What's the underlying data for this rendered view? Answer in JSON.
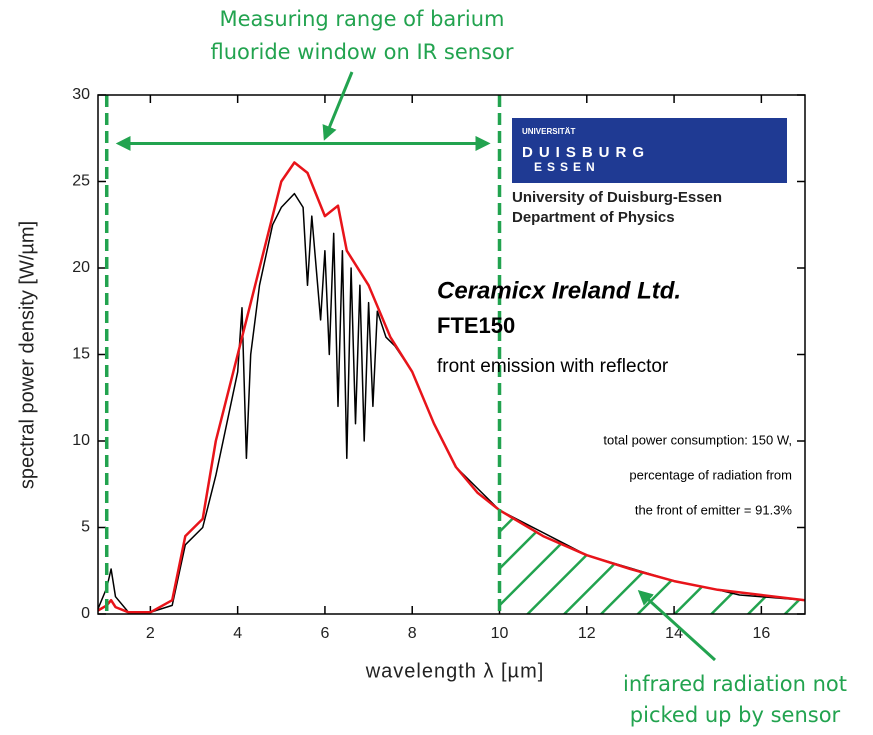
{
  "chart_data": {
    "type": "line",
    "xlabel": "wavelength λ [µm]",
    "ylabel": "spectral power density [W/µm]",
    "xlim": [
      0.8,
      17
    ],
    "ylim": [
      0,
      30
    ],
    "xticks": [
      2,
      4,
      6,
      8,
      10,
      12,
      14,
      16
    ],
    "yticks": [
      0,
      5,
      10,
      15,
      20,
      25,
      30
    ],
    "vlines": [
      1,
      10
    ],
    "range_arrow_y": 27.2,
    "hatch_from": 10,
    "series": [
      {
        "color": "#000000",
        "x": [
          0.8,
          1,
          1.1,
          1.2,
          1.5,
          2,
          2.5,
          2.8,
          3.2,
          3.5,
          4,
          4.1,
          4.2,
          4.3,
          4.5,
          4.8,
          5,
          5.3,
          5.5,
          5.6,
          5.7,
          5.9,
          6,
          6.1,
          6.2,
          6.3,
          6.4,
          6.5,
          6.6,
          6.7,
          6.8,
          6.9,
          7,
          7.1,
          7.2,
          7.4,
          7.6,
          8,
          8.5,
          9,
          10,
          12,
          14,
          15,
          15.5,
          16,
          17
        ],
        "values": [
          0.3,
          1.5,
          2.6,
          1,
          0.1,
          0.1,
          0.5,
          4,
          5,
          8,
          14,
          17.7,
          9,
          15,
          19,
          22.5,
          23.5,
          24.3,
          23.5,
          19,
          23,
          17,
          21,
          15,
          22,
          12,
          21,
          9,
          20,
          11,
          19,
          10,
          18,
          12,
          17.5,
          16,
          15.5,
          14,
          11,
          8.5,
          6,
          3.4,
          1.9,
          1.4,
          1.1,
          1,
          0.8
        ]
      },
      {
        "color": "#e8141a",
        "x": [
          0.8,
          1,
          1.1,
          1.2,
          1.5,
          2,
          2.5,
          2.8,
          3,
          3.2,
          3.5,
          4,
          4.5,
          5,
          5.3,
          5.6,
          6,
          6.3,
          6.5,
          7,
          7.5,
          8,
          8.5,
          9,
          9.5,
          10,
          11,
          12,
          13,
          14,
          15,
          16,
          17
        ],
        "values": [
          0.2,
          0.5,
          0.8,
          0.4,
          0.1,
          0.1,
          0.8,
          4.5,
          5,
          5.5,
          10,
          15,
          20,
          25,
          26.1,
          25.5,
          23,
          23.6,
          21,
          19,
          16,
          14,
          11,
          8.5,
          7,
          6,
          4.5,
          3.4,
          2.6,
          1.9,
          1.4,
          1.1,
          0.8
        ]
      }
    ],
    "annotations": {
      "top": [
        "Measuring range of barium",
        "fluoride window on IR sensor"
      ],
      "bottom": [
        "infrared radiation not",
        "picked up by sensor"
      ]
    },
    "logo": {
      "small": "UNIVERSITÄT",
      "line1": "DUISBURG",
      "line2": "ESSEN",
      "institution": [
        "University of Duisburg-Essen",
        "Department of Physics"
      ]
    },
    "notes": [
      "Ceramicx Ireland Ltd.",
      "FTE150",
      "front emission with reflector",
      "total power consumption: 150 W,",
      "percentage of radiation from",
      "the front of emitter = 91.3%"
    ]
  }
}
